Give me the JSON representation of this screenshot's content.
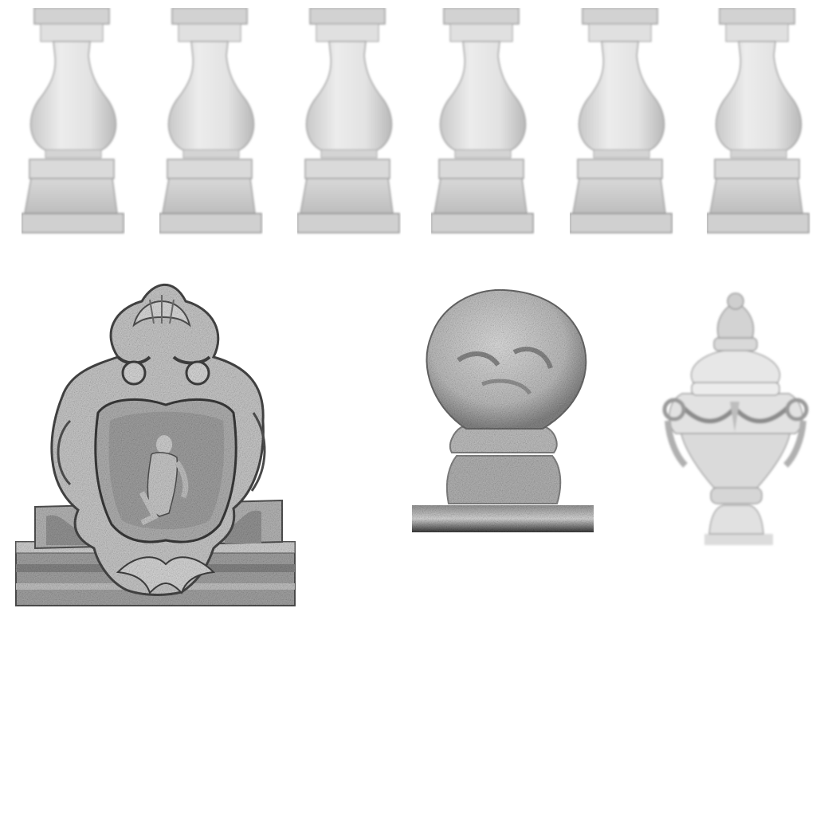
{
  "sheet": {
    "background": "#ffffff",
    "stone_light": "#e9e9e9",
    "stone_mid": "#bdbdbd",
    "stone_dark": "#6f6f6f"
  },
  "pieces": {
    "balusters": [
      {
        "kind": "baluster"
      },
      {
        "kind": "baluster"
      },
      {
        "kind": "baluster"
      },
      {
        "kind": "baluster"
      },
      {
        "kind": "baluster"
      },
      {
        "kind": "baluster"
      }
    ],
    "cartouche": {
      "kind": "carved-cartouche"
    },
    "finial": {
      "kind": "ball-finial"
    },
    "urn": {
      "kind": "decorative-urn"
    }
  }
}
